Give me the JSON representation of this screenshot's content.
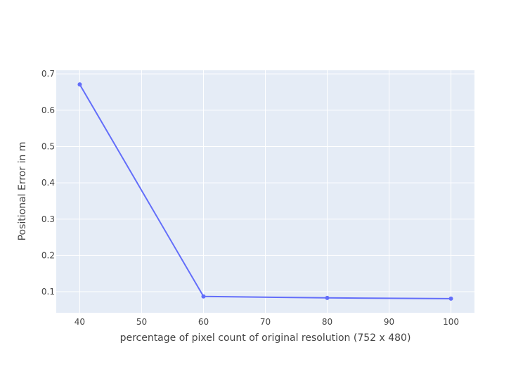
{
  "chart_data": {
    "type": "line",
    "title": "",
    "xlabel": "percentage of pixel count of original resolution (752 x 480)",
    "ylabel": "Positional Error in m",
    "x": [
      40,
      60,
      80,
      100
    ],
    "series": [
      {
        "values": [
          0.671,
          0.087,
          0.083,
          0.081
        ],
        "color": "#636efa"
      }
    ],
    "xlim": [
      36.2,
      103.8
    ],
    "ylim": [
      0.042,
      0.71
    ],
    "x_ticks": [
      40,
      50,
      60,
      70,
      80,
      90,
      100
    ],
    "y_ticks": [
      0.1,
      0.2,
      0.3,
      0.4,
      0.5,
      0.6,
      0.7
    ],
    "y_tick_labels": [
      "0.1",
      "0.2",
      "0.3",
      "0.4",
      "0.5",
      "0.6",
      "0.7"
    ],
    "grid": true,
    "plot_bg": "#e5ecf6",
    "grid_color": "#ffffff",
    "legend": "none"
  }
}
